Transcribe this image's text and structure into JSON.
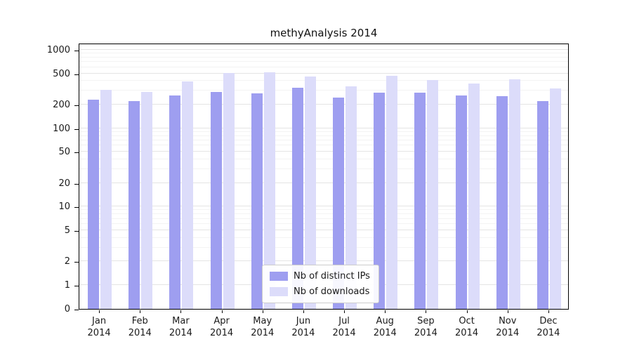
{
  "title": "methyAnalysis 2014",
  "chart_data": {
    "type": "bar",
    "title": "methyAnalysis 2014",
    "xlabel": "",
    "ylabel": "",
    "yscale": "log",
    "yticks": [
      0,
      1,
      2,
      5,
      10,
      20,
      50,
      100,
      200,
      500,
      1000
    ],
    "ylim": [
      0,
      1400
    ],
    "grid": "on",
    "legend_position": "bottom-center-inside",
    "categories": [
      "Jan",
      "Feb",
      "Mar",
      "Apr",
      "May",
      "Jun",
      "Jul",
      "Aug",
      "Sep",
      "Oct",
      "Nov",
      "Dec"
    ],
    "category_year": "2014",
    "series": [
      {
        "name": "Nb of distinct IPs",
        "color": "#9e9ef0",
        "values": [
          230,
          222,
          262,
          288,
          278,
          330,
          248,
          283,
          287,
          264,
          258,
          224
        ]
      },
      {
        "name": "Nb of downloads",
        "color": "#dcdcfa",
        "values": [
          310,
          292,
          398,
          508,
          515,
          455,
          344,
          470,
          415,
          368,
          418,
          322
        ]
      }
    ]
  }
}
